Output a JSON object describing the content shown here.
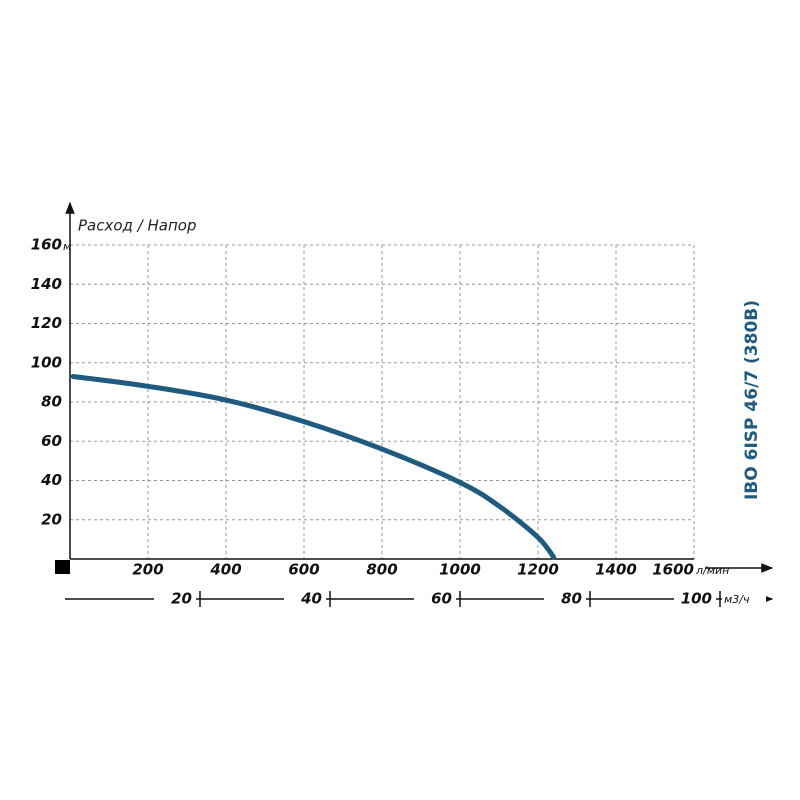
{
  "chart_data": {
    "type": "line",
    "title": "IBO 6ISP 46/7 (380В)",
    "axis_label": "Расход / Напор",
    "x_unit": "л/мин",
    "y_unit": "м",
    "x2_unit": "м3/ч",
    "x": [
      8,
      200,
      400,
      600,
      800,
      1000,
      1100,
      1200,
      1240
    ],
    "series": [
      {
        "color": "#1f5a80",
        "values": [
          93,
          88,
          81,
          70,
          56,
          39,
          27,
          11,
          1
        ]
      }
    ],
    "xlim": [
      0,
      1600
    ],
    "xticks": [
      200,
      400,
      600,
      800,
      1000,
      1200,
      1400,
      1600
    ],
    "ylim": [
      0,
      160
    ],
    "yticks": [
      20,
      40,
      60,
      80,
      100,
      120,
      140,
      160
    ],
    "x2lim": [
      0,
      96
    ],
    "x2ticks": [
      20,
      40,
      60,
      80,
      100
    ],
    "grid": true
  }
}
